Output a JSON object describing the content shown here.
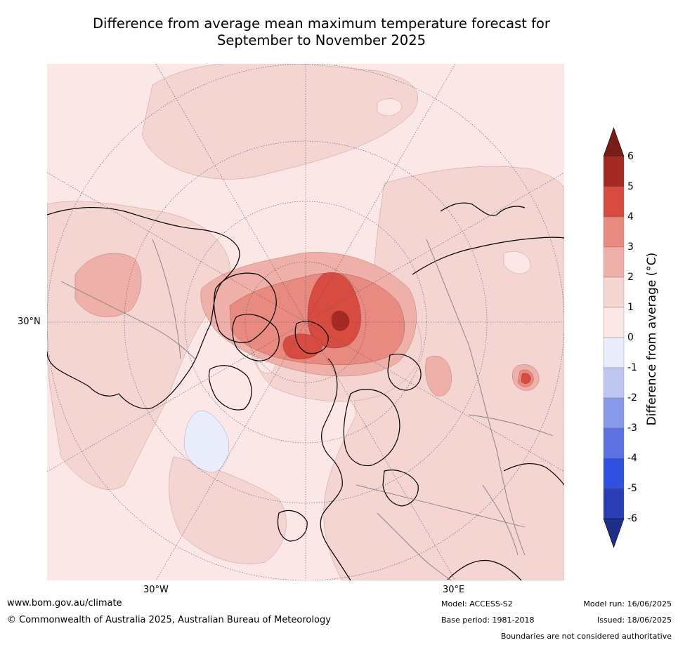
{
  "title_line1": "Difference from average mean maximum temperature forecast for",
  "title_line2": "September to November 2025",
  "map": {
    "projection": "north-polar-stereographic",
    "ocean_color": "#fbe8e6",
    "graticule_labels": {
      "lat_30n": "30°N",
      "lon_30w": "30°W",
      "lon_30e": "30°E"
    }
  },
  "colorbar": {
    "label": "Difference from average (°C)",
    "label_prefix": "Difference from average (",
    "label_unit": "°C",
    "label_suffix": ")",
    "tick_labels": [
      "6",
      "5",
      "4",
      "3",
      "2",
      "1",
      "0",
      "-1",
      "-2",
      "-3",
      "-4",
      "-5",
      "-6"
    ],
    "bins": [
      {
        "range": [
          5,
          6
        ],
        "color": "#a52a24"
      },
      {
        "range": [
          4,
          5
        ],
        "color": "#d84b40"
      },
      {
        "range": [
          3,
          4
        ],
        "color": "#e88a80"
      },
      {
        "range": [
          2,
          3
        ],
        "color": "#efb0aa"
      },
      {
        "range": [
          1,
          2
        ],
        "color": "#f5d5d2"
      },
      {
        "range": [
          0,
          1
        ],
        "color": "#fbe8e6"
      },
      {
        "range": [
          -1,
          0
        ],
        "color": "#e8ecfb"
      },
      {
        "range": [
          -2,
          -1
        ],
        "color": "#c0c8f2"
      },
      {
        "range": [
          -3,
          -2
        ],
        "color": "#8a9aea"
      },
      {
        "range": [
          -4,
          -3
        ],
        "color": "#5c72e2"
      },
      {
        "range": [
          -5,
          -4
        ],
        "color": "#3050e0"
      },
      {
        "range": [
          -6,
          -5
        ],
        "color": "#2a3db5"
      }
    ],
    "over_color": "#7a1d18",
    "under_color": "#1f2f88"
  },
  "footer": {
    "website": "www.bom.gov.au/climate",
    "copyright": "© Commonwealth of Australia 2025, Australian Bureau of Meteorology",
    "model": "Model: ACCESS-S2",
    "base_period": "Base period: 1981-2018",
    "model_run": "Model run: 16/06/2025",
    "issued": "Issued: 18/06/2025",
    "disclaimer": "Boundaries are not considered authoritative"
  }
}
